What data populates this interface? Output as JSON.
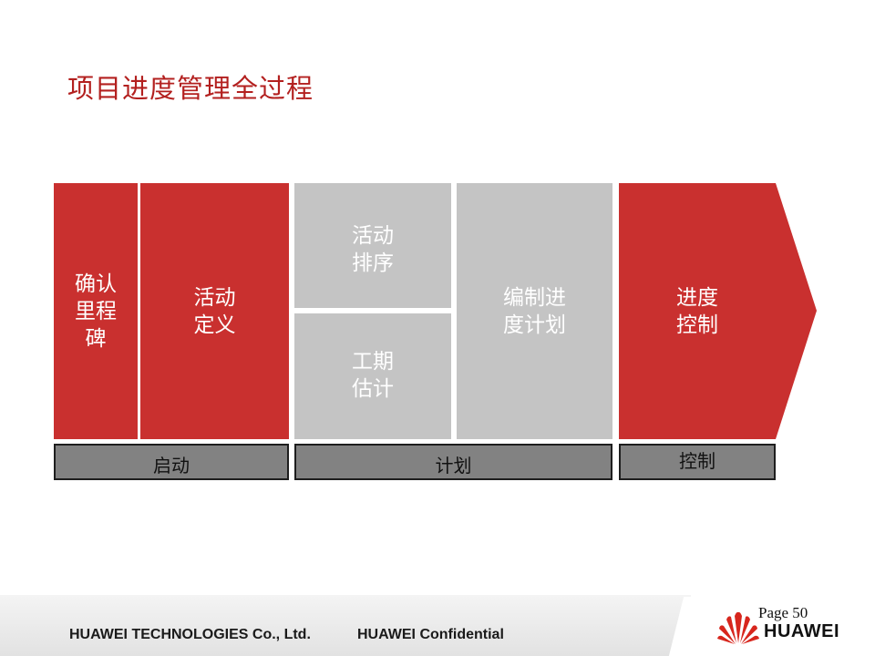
{
  "slide": {
    "title": "项目进度管理全过程"
  },
  "process": {
    "steps": [
      {
        "label": "确认\n里程\n碑",
        "color": "#c9302f"
      },
      {
        "label": "活动\n定义",
        "color": "#c9302f"
      },
      {
        "label": "活动\n排序",
        "color": "#c4c4c4"
      },
      {
        "label": "工期\n估计",
        "color": "#c4c4c4"
      },
      {
        "label": "编制进\n度计划",
        "color": "#c4c4c4"
      },
      {
        "label": "进度\n控制",
        "color": "#c9302f"
      }
    ],
    "phases": [
      {
        "label": "启动"
      },
      {
        "label": "计划"
      },
      {
        "label": "控制"
      }
    ]
  },
  "footer": {
    "company": "HUAWEI TECHNOLOGIES Co., Ltd.",
    "confidential": "HUAWEI Confidential",
    "page": "Page 50",
    "logo_text": "HUAWEI"
  }
}
